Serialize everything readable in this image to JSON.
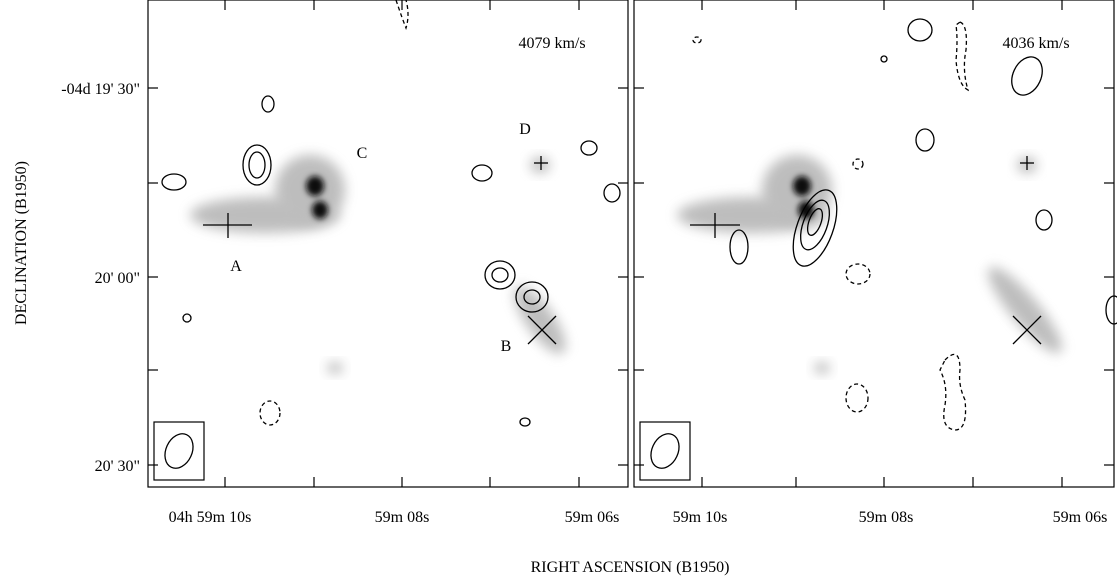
{
  "panels": [
    {
      "velocity": "4079 km/s",
      "x_tick_labels": [
        "04h 59m 10s",
        "59m 08s",
        "59m 06s"
      ],
      "source_labels": [
        "A",
        "B",
        "C",
        "D"
      ]
    },
    {
      "velocity": "4036 km/s",
      "x_tick_labels": [
        "59m 10s",
        "59m 08s",
        "59m 06s"
      ]
    }
  ],
  "y_tick_labels": [
    "-04d 19' 30\"",
    "20' 00\"",
    "20' 30\""
  ],
  "x_axis_label": "RIGHT ASCENSION (B1950)",
  "y_axis_label": "DECLINATION (B1950)"
}
